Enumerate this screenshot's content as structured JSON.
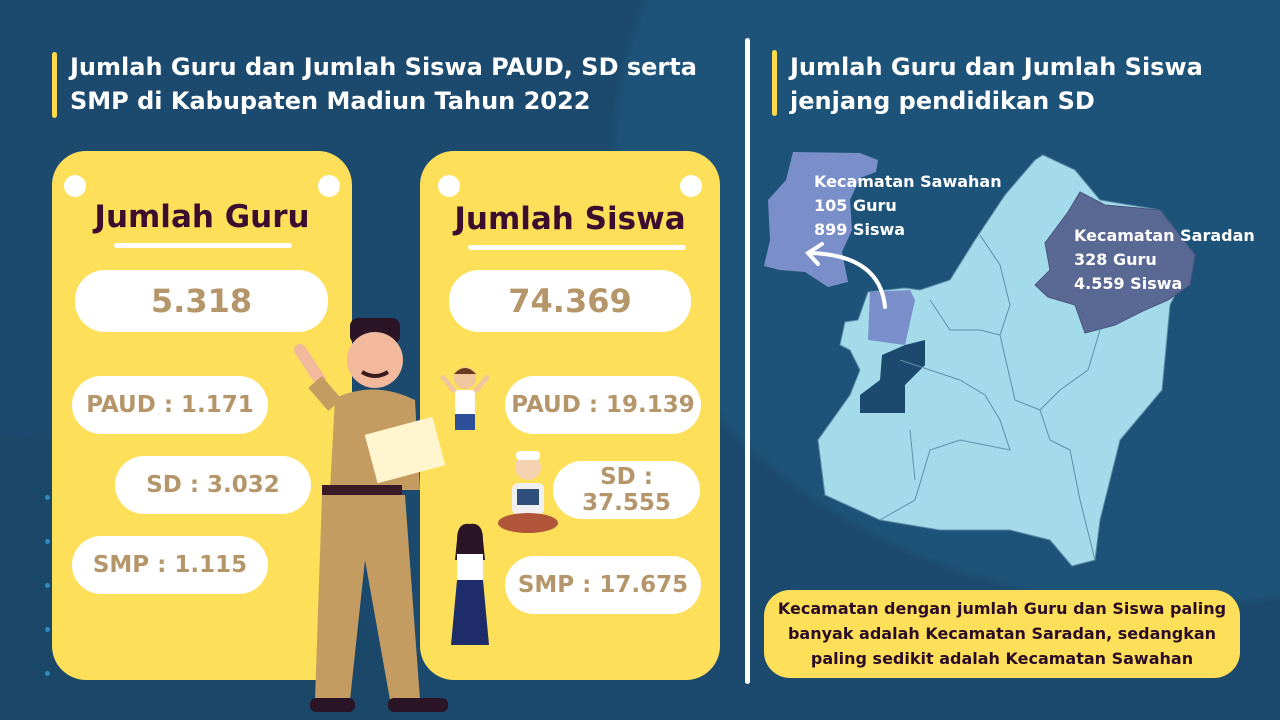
{
  "left_title": "Jumlah Guru dan Jumlah Siswa PAUD, SD serta SMP di Kabupaten Madiun Tahun 2022",
  "guru_card": {
    "title": "Jumlah Guru",
    "total": "5.318",
    "paud": "PAUD : 1.171",
    "sd": "SD : 3.032",
    "smp": "SMP : 1.115"
  },
  "siswa_card": {
    "title": "Jumlah Siswa",
    "total": "74.369",
    "paud": "PAUD : 19.139",
    "sd": "SD : 37.555",
    "smp": "SMP : 17.675"
  },
  "right_title": "Jumlah Guru dan Jumlah Siswa jenjang pendidikan SD",
  "map": {
    "sawahan": {
      "name": "Kecamatan Sawahan",
      "guru": "105 Guru",
      "siswa": "899 Siswa",
      "color": "#7a8fc9"
    },
    "saradan": {
      "name": "Kecamatan Saradan",
      "guru": "328 Guru",
      "siswa": "4.559 Siswa",
      "color": "#5a6894"
    },
    "base_color": "#a3dbea"
  },
  "note": "Kecamatan dengan jumlah Guru dan Siswa paling banyak adalah Kecamatan Saradan, sedangkan paling sedikit adalah Kecamatan Sawahan",
  "colors": {
    "background": "#1c4a6e",
    "card": "#fddf5a",
    "accent_bar": "#fcd94f",
    "number": "#b5966a",
    "heading": "#3b0e2f"
  }
}
